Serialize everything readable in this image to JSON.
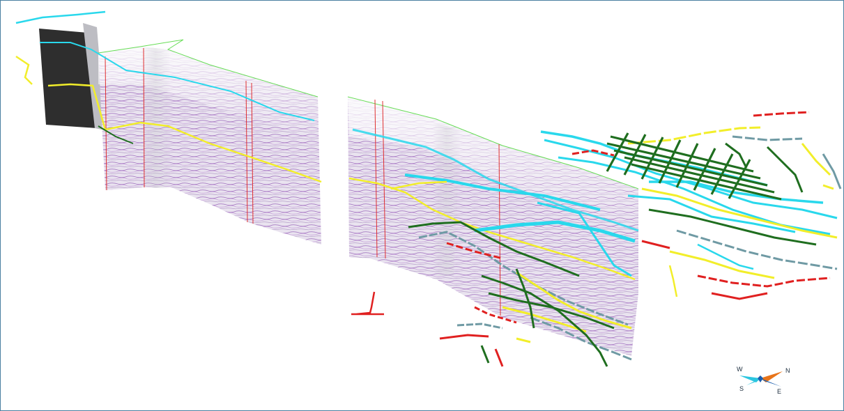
{
  "viewport": {
    "background": "#ffffff",
    "border_color": "#4a7fa0"
  },
  "colors": {
    "seismic_purple": "#8a4fb0",
    "seismic_gray": "#d9d9df",
    "dark_panel": "#2e2e2e",
    "horizon_cyan": "#29d8ec",
    "horizon_yellow": "#f2ee2a",
    "horizon_darkgreen": "#1f6e1f",
    "horizon_red": "#e02020",
    "horizon_slate": "#6f9aa4",
    "top_edge_green": "#66dd55",
    "well_red": "#e03030"
  },
  "compass": {
    "icon": "compass-rose-icon",
    "w": "W",
    "n": "N",
    "s": "S",
    "e": "E",
    "arrow_colors": [
      "#e8741a",
      "#2bc6e0",
      "#1b5fb0"
    ]
  }
}
